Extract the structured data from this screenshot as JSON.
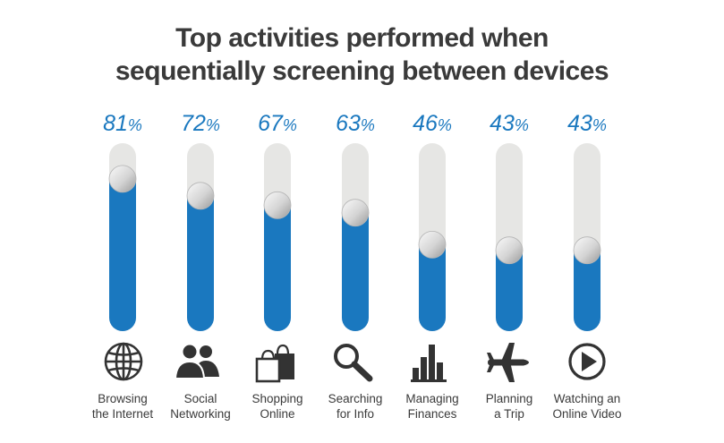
{
  "title_line1": "Top activities performed when",
  "title_line2": "sequentially screening between devices",
  "colors": {
    "fill": "#1a78bf",
    "track": "#e6e6e4",
    "text": "#3a3a3a",
    "percent": "#1a78bf"
  },
  "chart_data": {
    "type": "bar",
    "title": "Top activities performed when sequentially screening between devices",
    "unit": "%",
    "ylim": [
      0,
      100
    ],
    "categories": [
      "Browsing the Internet",
      "Social Networking",
      "Shopping Online",
      "Searching for Info",
      "Managing Finances",
      "Planning a Trip",
      "Watching an Online Video"
    ],
    "values": [
      81,
      72,
      67,
      63,
      46,
      43,
      43
    ]
  },
  "labels": [
    {
      "line1": "Browsing",
      "line2": "the Internet",
      "icon": "globe-icon"
    },
    {
      "line1": "Social",
      "line2": "Networking",
      "icon": "people-icon"
    },
    {
      "line1": "Shopping",
      "line2": "Online",
      "icon": "shopping-bags-icon"
    },
    {
      "line1": "Searching",
      "line2": "for Info",
      "icon": "magnifier-icon"
    },
    {
      "line1": "Managing",
      "line2": "Finances",
      "icon": "bar-chart-icon"
    },
    {
      "line1": "Planning",
      "line2": "a Trip",
      "icon": "airplane-icon"
    },
    {
      "line1": "Watching an",
      "line2": "Online Video",
      "icon": "play-button-icon"
    }
  ]
}
